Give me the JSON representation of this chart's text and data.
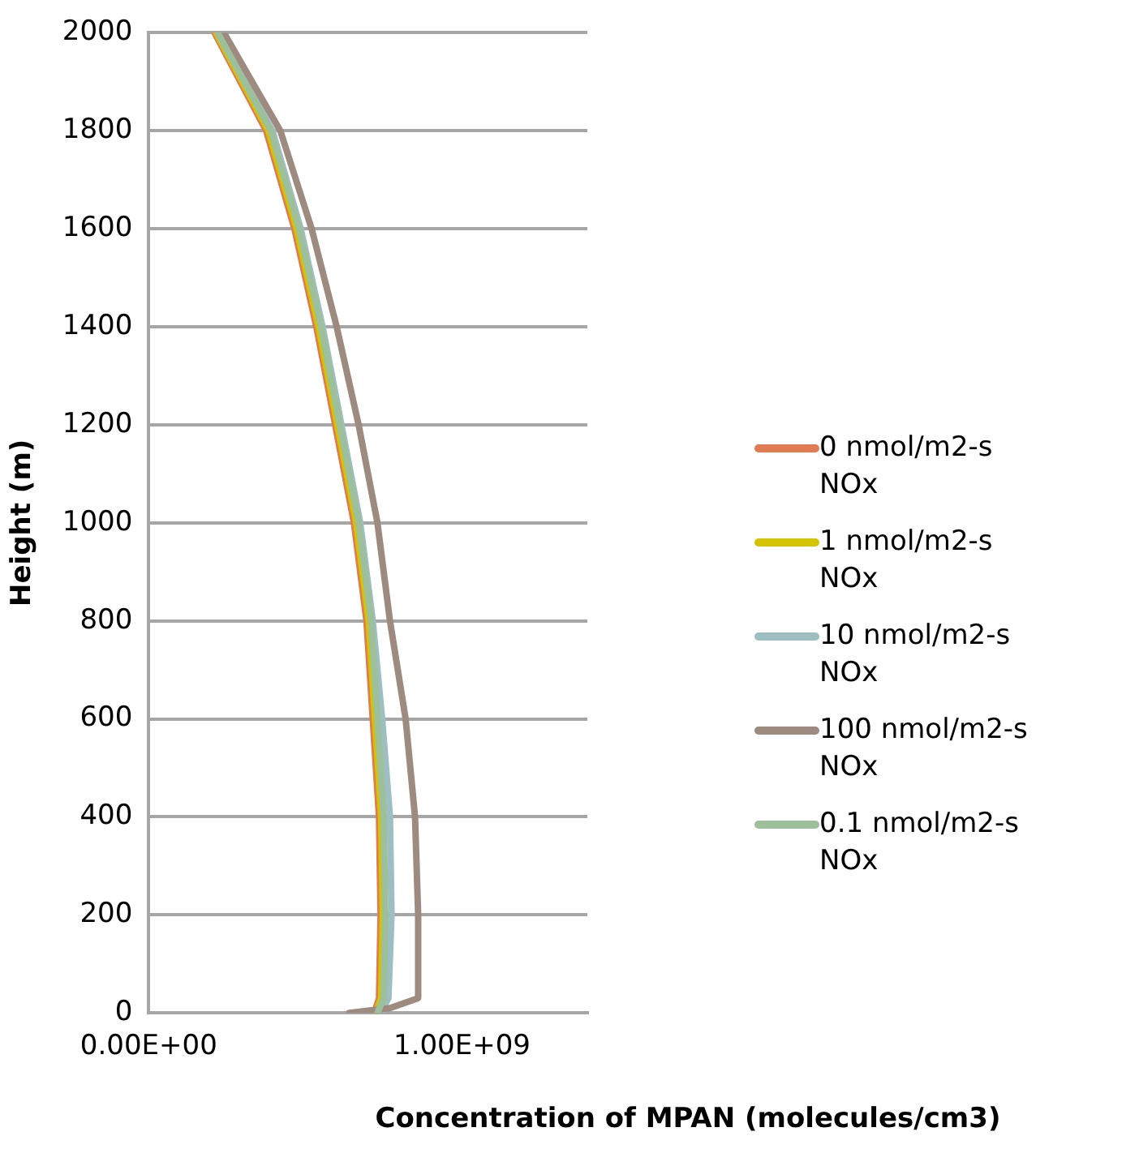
{
  "chart_data": {
    "type": "line",
    "xlabel": "Concentration of MPAN (molecules/cm3)",
    "ylabel": "Height (m)",
    "xlim": [
      0,
      1400000000
    ],
    "xticks": [
      {
        "value": 0,
        "label": "0.00E+00"
      },
      {
        "value": 1000000000,
        "label": "1.00E+09"
      }
    ],
    "ylim": [
      0,
      2000
    ],
    "yticks": [
      0,
      200,
      400,
      600,
      800,
      1000,
      1200,
      1400,
      1600,
      1800,
      2000
    ],
    "grid": "y",
    "legend": "right",
    "marker": "none",
    "line_style": "solid",
    "series": [
      {
        "name": "0 nmol/m2-s NOx",
        "color": "#e07b54",
        "x": [
          720000000,
          735000000,
          740000000,
          735000000,
          715000000,
          695000000,
          655000000,
          595000000,
          535000000,
          465000000,
          375000000,
          210000000
        ],
        "values": [
          0,
          30,
          200,
          400,
          600,
          800,
          1000,
          1200,
          1400,
          1600,
          1800,
          2000
        ]
      },
      {
        "name": "1 nmol/m2-s NOx",
        "color": "#d4c400",
        "x": [
          725000000,
          742000000,
          747000000,
          742000000,
          722000000,
          702000000,
          662000000,
          602000000,
          542000000,
          472000000,
          382000000,
          215000000
        ],
        "values": [
          0,
          30,
          200,
          400,
          600,
          800,
          1000,
          1200,
          1400,
          1600,
          1800,
          2000
        ]
      },
      {
        "name": "10 nmol/m2-s NOx",
        "color": "#9dbfc2",
        "x": [
          740000000,
          765000000,
          775000000,
          770000000,
          745000000,
          715000000,
          675000000,
          615000000,
          555000000,
          485000000,
          395000000,
          225000000
        ],
        "values": [
          0,
          30,
          200,
          400,
          600,
          800,
          1000,
          1200,
          1400,
          1600,
          1800,
          2000
        ]
      },
      {
        "name": "100 nmol/m2-s NOx",
        "color": "#9e8b80",
        "x": [
          640000000,
          770000000,
          860000000,
          860000000,
          850000000,
          820000000,
          770000000,
          730000000,
          670000000,
          600000000,
          520000000,
          420000000,
          240000000
        ],
        "values": [
          0,
          10,
          30,
          200,
          400,
          600,
          800,
          1000,
          1200,
          1400,
          1600,
          1800,
          2000
        ]
      },
      {
        "name": "0.1 nmol/m2-s NOx",
        "color": "#9dbf9c",
        "x": [
          730000000,
          750000000,
          755000000,
          750000000,
          730000000,
          710000000,
          670000000,
          610000000,
          550000000,
          480000000,
          390000000,
          220000000
        ],
        "values": [
          0,
          30,
          200,
          400,
          600,
          800,
          1000,
          1200,
          1400,
          1600,
          1800,
          2000
        ]
      }
    ]
  }
}
